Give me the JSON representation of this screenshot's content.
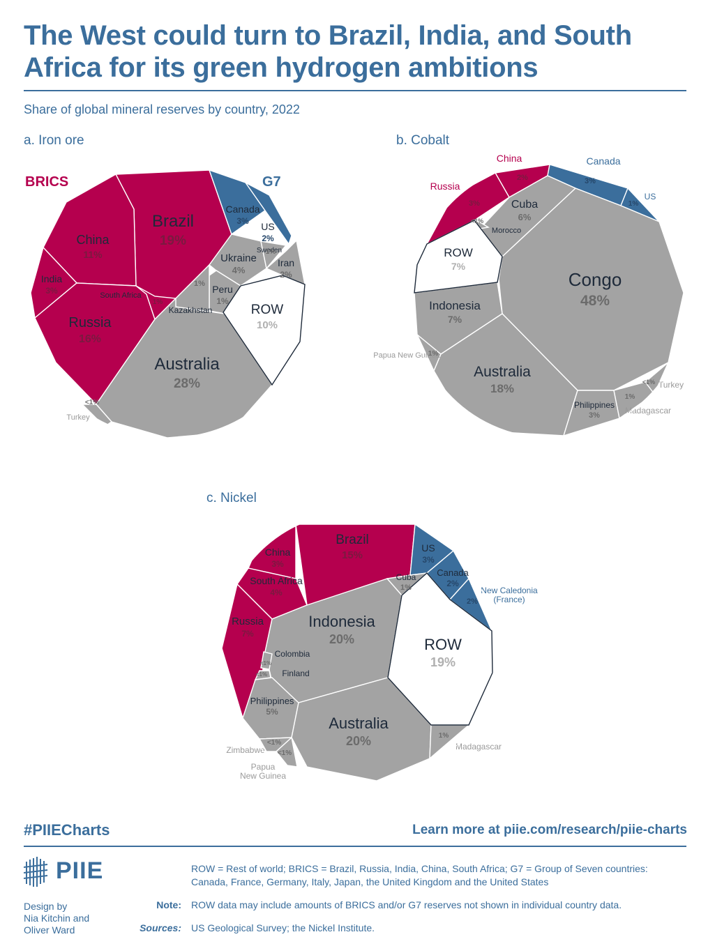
{
  "header": {
    "title": "The West could turn to Brazil, India, and South Africa for its green hydrogen ambitions",
    "subtitle": "Share of global mineral reserves by country, 2022"
  },
  "colors": {
    "brics": "#b5004e",
    "g7": "#3b6e9c",
    "other": "#a3a3a3",
    "row": "#ffffff",
    "label_dark": "#1e2a3a",
    "label_muted": "#9a9a9a"
  },
  "legend": {
    "brics": "BRICS",
    "g7": "G7"
  },
  "chart_data": [
    {
      "type": "voronoi-treemap",
      "title": "a. Iron ore",
      "unit": "% of global reserves",
      "cells": [
        {
          "name": "Brazil",
          "value": "19%",
          "group": "brics"
        },
        {
          "name": "China",
          "value": "11%",
          "group": "brics"
        },
        {
          "name": "India",
          "value": "3%",
          "group": "brics"
        },
        {
          "name": "Russia",
          "value": "16%",
          "group": "brics"
        },
        {
          "name": "South Africa",
          "value": "1%",
          "group": "brics"
        },
        {
          "name": "Canada",
          "value": "3%",
          "group": "g7"
        },
        {
          "name": "US",
          "value": "2%",
          "group": "g7"
        },
        {
          "name": "Australia",
          "value": "28%",
          "group": "other"
        },
        {
          "name": "Ukraine",
          "value": "4%",
          "group": "other"
        },
        {
          "name": "Iran",
          "value": "2%",
          "group": "other"
        },
        {
          "name": "Sweden",
          "value": "1%",
          "group": "other"
        },
        {
          "name": "Peru",
          "value": "1%",
          "group": "other"
        },
        {
          "name": "Kazakhstan",
          "value": "1%",
          "group": "other"
        },
        {
          "name": "Turkey",
          "value": "<1%",
          "group": "other"
        },
        {
          "name": "ROW",
          "value": "10%",
          "group": "row"
        }
      ]
    },
    {
      "type": "voronoi-treemap",
      "title": "b. Cobalt",
      "unit": "% of global reserves",
      "cells": [
        {
          "name": "China",
          "value": "2%",
          "group": "brics"
        },
        {
          "name": "Russia",
          "value": "3%",
          "group": "brics"
        },
        {
          "name": "Canada",
          "value": "3%",
          "group": "g7"
        },
        {
          "name": "US",
          "value": "1%",
          "group": "g7"
        },
        {
          "name": "Congo",
          "value": "48%",
          "group": "other"
        },
        {
          "name": "Cuba",
          "value": "6%",
          "group": "other"
        },
        {
          "name": "Morocco",
          "value": "<1%",
          "group": "other"
        },
        {
          "name": "Indonesia",
          "value": "7%",
          "group": "other"
        },
        {
          "name": "Papua New Guinea",
          "value": "1%",
          "group": "other"
        },
        {
          "name": "Australia",
          "value": "18%",
          "group": "other"
        },
        {
          "name": "Philippines",
          "value": "3%",
          "group": "other"
        },
        {
          "name": "Madagascar",
          "value": "1%",
          "group": "other"
        },
        {
          "name": "Turkey",
          "value": "<1%",
          "group": "other"
        },
        {
          "name": "ROW",
          "value": "7%",
          "group": "row"
        }
      ]
    },
    {
      "type": "voronoi-treemap",
      "title": "c. Nickel",
      "unit": "% of global reserves",
      "cells": [
        {
          "name": "Brazil",
          "value": "15%",
          "group": "brics"
        },
        {
          "name": "China",
          "value": "3%",
          "group": "brics"
        },
        {
          "name": "South Africa",
          "value": "4%",
          "group": "brics"
        },
        {
          "name": "Russia",
          "value": "7%",
          "group": "brics"
        },
        {
          "name": "US",
          "value": "3%",
          "group": "g7"
        },
        {
          "name": "Canada",
          "value": "2%",
          "group": "g7"
        },
        {
          "name": "New Caledonia (France)",
          "value": "2%",
          "group": "g7"
        },
        {
          "name": "Cuba",
          "value": "1%",
          "group": "other"
        },
        {
          "name": "Indonesia",
          "value": "20%",
          "group": "other"
        },
        {
          "name": "Colombia",
          "value": "<1%",
          "group": "other"
        },
        {
          "name": "Finland",
          "value": "<1%",
          "group": "other"
        },
        {
          "name": "Philippines",
          "value": "5%",
          "group": "other"
        },
        {
          "name": "Zimbabwe",
          "value": "<1%",
          "group": "other"
        },
        {
          "name": "Papua New Guinea",
          "value": "<1%",
          "group": "other"
        },
        {
          "name": "Australia",
          "value": "20%",
          "group": "other"
        },
        {
          "name": "Madagascar",
          "value": "1%",
          "group": "other"
        },
        {
          "name": "ROW",
          "value": "19%",
          "group": "row"
        }
      ]
    }
  ],
  "footer": {
    "hashtag": "#PIIECharts",
    "learn_more": "Learn more at piie.com/research/piie-charts",
    "logo_text": "PIIE",
    "definitions": "ROW = Rest of world; BRICS = Brazil, Russia, India, China, South Africa; G7 = Group of Seven countries: Canada, France, Germany, Italy, Japan, the United Kingdom and the United States",
    "note_label": "Note:",
    "note_text": "ROW data may include amounts of BRICS and/or G7 reserves not shown in individual country data.",
    "sources_label": "Sources:",
    "sources_text": "US Geological Survey; the Nickel Institute.",
    "credit": "Design by\nNia Kitchin and\nOliver Ward"
  }
}
